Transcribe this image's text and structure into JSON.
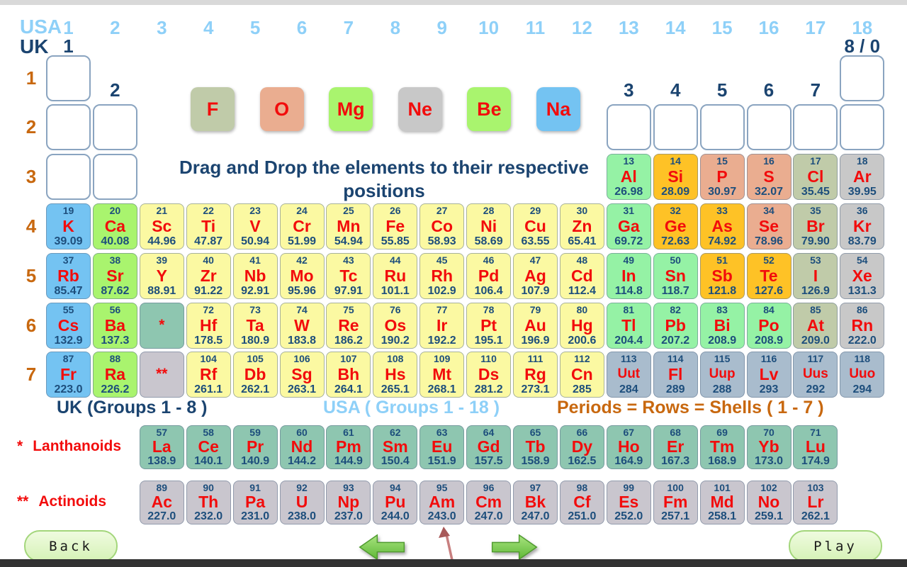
{
  "header": {
    "usa_label": "USA",
    "uk_label": "UK",
    "usa_groups": [
      "1",
      "2",
      "3",
      "4",
      "5",
      "6",
      "7",
      "8",
      "9",
      "10",
      "11",
      "12",
      "13",
      "14",
      "15",
      "16",
      "17",
      "18"
    ],
    "uk_groups": [
      {
        "label": "1",
        "group": 1,
        "row": "top"
      },
      {
        "label": "8 / 0",
        "group": 18,
        "row": "top"
      },
      {
        "label": "2",
        "group": 2,
        "row": "mid"
      },
      {
        "label": "3",
        "group": 13,
        "row": "mid"
      },
      {
        "label": "4",
        "group": 14,
        "row": "mid"
      },
      {
        "label": "5",
        "group": 15,
        "row": "mid"
      },
      {
        "label": "6",
        "group": 16,
        "row": "mid"
      },
      {
        "label": "7",
        "group": 17,
        "row": "mid"
      }
    ]
  },
  "periods": [
    "1",
    "2",
    "3",
    "4",
    "5",
    "6",
    "7"
  ],
  "instruction": "Drag and Drop the elements to their respective positions",
  "draggables": [
    {
      "symbol": "F",
      "category": "halogen"
    },
    {
      "symbol": "O",
      "category": "nonmetal"
    },
    {
      "symbol": "Mg",
      "category": "alkaline"
    },
    {
      "symbol": "Ne",
      "category": "noble"
    },
    {
      "symbol": "Be",
      "category": "alkaline"
    },
    {
      "symbol": "Na",
      "category": "alkali"
    }
  ],
  "table": {
    "empty_slots": [
      {
        "period": 1,
        "group": 1
      },
      {
        "period": 1,
        "group": 18
      },
      {
        "period": 2,
        "group": 1
      },
      {
        "period": 2,
        "group": 2
      },
      {
        "period": 2,
        "group": 13
      },
      {
        "period": 2,
        "group": 14
      },
      {
        "period": 2,
        "group": 15
      },
      {
        "period": 2,
        "group": 16
      },
      {
        "period": 2,
        "group": 17
      },
      {
        "period": 2,
        "group": 18
      },
      {
        "period": 3,
        "group": 1
      },
      {
        "period": 3,
        "group": 2
      }
    ],
    "placeholders": [
      {
        "period": 6,
        "group": 3,
        "symbol": "*",
        "category": "lanthanoid"
      },
      {
        "period": 7,
        "group": 3,
        "symbol": "**",
        "category": "actinoid"
      }
    ],
    "elements": [
      {
        "period": 3,
        "group": 13,
        "number": "13",
        "symbol": "Al",
        "mass": "26.98",
        "category": "post"
      },
      {
        "period": 3,
        "group": 14,
        "number": "14",
        "symbol": "Si",
        "mass": "28.09",
        "category": "metalloid"
      },
      {
        "period": 3,
        "group": 15,
        "number": "15",
        "symbol": "P",
        "mass": "30.97",
        "category": "nonmetal"
      },
      {
        "period": 3,
        "group": 16,
        "number": "16",
        "symbol": "S",
        "mass": "32.07",
        "category": "nonmetal"
      },
      {
        "period": 3,
        "group": 17,
        "number": "17",
        "symbol": "Cl",
        "mass": "35.45",
        "category": "halogen"
      },
      {
        "period": 3,
        "group": 18,
        "number": "18",
        "symbol": "Ar",
        "mass": "39.95",
        "category": "noble"
      },
      {
        "period": 4,
        "group": 1,
        "number": "19",
        "symbol": "K",
        "mass": "39.09",
        "category": "alkali"
      },
      {
        "period": 4,
        "group": 2,
        "number": "20",
        "symbol": "Ca",
        "mass": "40.08",
        "category": "alkaline"
      },
      {
        "period": 4,
        "group": 3,
        "number": "21",
        "symbol": "Sc",
        "mass": "44.96",
        "category": "transition"
      },
      {
        "period": 4,
        "group": 4,
        "number": "22",
        "symbol": "Ti",
        "mass": "47.87",
        "category": "transition"
      },
      {
        "period": 4,
        "group": 5,
        "number": "23",
        "symbol": "V",
        "mass": "50.94",
        "category": "transition"
      },
      {
        "period": 4,
        "group": 6,
        "number": "24",
        "symbol": "Cr",
        "mass": "51.99",
        "category": "transition"
      },
      {
        "period": 4,
        "group": 7,
        "number": "25",
        "symbol": "Mn",
        "mass": "54.94",
        "category": "transition"
      },
      {
        "period": 4,
        "group": 8,
        "number": "26",
        "symbol": "Fe",
        "mass": "55.85",
        "category": "transition"
      },
      {
        "period": 4,
        "group": 9,
        "number": "27",
        "symbol": "Co",
        "mass": "58.93",
        "category": "transition"
      },
      {
        "period": 4,
        "group": 10,
        "number": "28",
        "symbol": "Ni",
        "mass": "58.69",
        "category": "transition"
      },
      {
        "period": 4,
        "group": 11,
        "number": "29",
        "symbol": "Cu",
        "mass": "63.55",
        "category": "transition"
      },
      {
        "period": 4,
        "group": 12,
        "number": "30",
        "symbol": "Zn",
        "mass": "65.41",
        "category": "transition"
      },
      {
        "period": 4,
        "group": 13,
        "number": "31",
        "symbol": "Ga",
        "mass": "69.72",
        "category": "post"
      },
      {
        "period": 4,
        "group": 14,
        "number": "32",
        "symbol": "Ge",
        "mass": "72.63",
        "category": "metalloid"
      },
      {
        "period": 4,
        "group": 15,
        "number": "33",
        "symbol": "As",
        "mass": "74.92",
        "category": "metalloid"
      },
      {
        "period": 4,
        "group": 16,
        "number": "34",
        "symbol": "Se",
        "mass": "78.96",
        "category": "nonmetal"
      },
      {
        "period": 4,
        "group": 17,
        "number": "35",
        "symbol": "Br",
        "mass": "79.90",
        "category": "halogen"
      },
      {
        "period": 4,
        "group": 18,
        "number": "36",
        "symbol": "Kr",
        "mass": "83.79",
        "category": "noble"
      },
      {
        "period": 5,
        "group": 1,
        "number": "37",
        "symbol": "Rb",
        "mass": "85.47",
        "category": "alkali"
      },
      {
        "period": 5,
        "group": 2,
        "number": "38",
        "symbol": "Sr",
        "mass": "87.62",
        "category": "alkaline"
      },
      {
        "period": 5,
        "group": 3,
        "number": "39",
        "symbol": "Y",
        "mass": "88.91",
        "category": "transition"
      },
      {
        "period": 5,
        "group": 4,
        "number": "40",
        "symbol": "Zr",
        "mass": "91.22",
        "category": "transition"
      },
      {
        "period": 5,
        "group": 5,
        "number": "41",
        "symbol": "Nb",
        "mass": "92.91",
        "category": "transition"
      },
      {
        "period": 5,
        "group": 6,
        "number": "42",
        "symbol": "Mo",
        "mass": "95.96",
        "category": "transition"
      },
      {
        "period": 5,
        "group": 7,
        "number": "43",
        "symbol": "Tc",
        "mass": "97.91",
        "category": "transition"
      },
      {
        "period": 5,
        "group": 8,
        "number": "44",
        "symbol": "Ru",
        "mass": "101.1",
        "category": "transition"
      },
      {
        "period": 5,
        "group": 9,
        "number": "45",
        "symbol": "Rh",
        "mass": "102.9",
        "category": "transition"
      },
      {
        "period": 5,
        "group": 10,
        "number": "46",
        "symbol": "Pd",
        "mass": "106.4",
        "category": "transition"
      },
      {
        "period": 5,
        "group": 11,
        "number": "47",
        "symbol": "Ag",
        "mass": "107.9",
        "category": "transition"
      },
      {
        "period": 5,
        "group": 12,
        "number": "48",
        "symbol": "Cd",
        "mass": "112.4",
        "category": "transition"
      },
      {
        "period": 5,
        "group": 13,
        "number": "49",
        "symbol": "In",
        "mass": "114.8",
        "category": "post"
      },
      {
        "period": 5,
        "group": 14,
        "number": "50",
        "symbol": "Sn",
        "mass": "118.7",
        "category": "post"
      },
      {
        "period": 5,
        "group": 15,
        "number": "51",
        "symbol": "Sb",
        "mass": "121.8",
        "category": "metalloid"
      },
      {
        "period": 5,
        "group": 16,
        "number": "52",
        "symbol": "Te",
        "mass": "127.6",
        "category": "metalloid"
      },
      {
        "period": 5,
        "group": 17,
        "number": "53",
        "symbol": "I",
        "mass": "126.9",
        "category": "halogen"
      },
      {
        "period": 5,
        "group": 18,
        "number": "54",
        "symbol": "Xe",
        "mass": "131.3",
        "category": "noble"
      },
      {
        "period": 6,
        "group": 1,
        "number": "55",
        "symbol": "Cs",
        "mass": "132.9",
        "category": "alkali"
      },
      {
        "period": 6,
        "group": 2,
        "number": "56",
        "symbol": "Ba",
        "mass": "137.3",
        "category": "alkaline"
      },
      {
        "period": 6,
        "group": 4,
        "number": "72",
        "symbol": "Hf",
        "mass": "178.5",
        "category": "transition"
      },
      {
        "period": 6,
        "group": 5,
        "number": "73",
        "symbol": "Ta",
        "mass": "180.9",
        "category": "transition"
      },
      {
        "period": 6,
        "group": 6,
        "number": "74",
        "symbol": "W",
        "mass": "183.8",
        "category": "transition"
      },
      {
        "period": 6,
        "group": 7,
        "number": "75",
        "symbol": "Re",
        "mass": "186.2",
        "category": "transition"
      },
      {
        "period": 6,
        "group": 8,
        "number": "76",
        "symbol": "Os",
        "mass": "190.2",
        "category": "transition"
      },
      {
        "period": 6,
        "group": 9,
        "number": "77",
        "symbol": "Ir",
        "mass": "192.2",
        "category": "transition"
      },
      {
        "period": 6,
        "group": 10,
        "number": "78",
        "symbol": "Pt",
        "mass": "195.1",
        "category": "transition"
      },
      {
        "period": 6,
        "group": 11,
        "number": "79",
        "symbol": "Au",
        "mass": "196.9",
        "category": "transition"
      },
      {
        "period": 6,
        "group": 12,
        "number": "80",
        "symbol": "Hg",
        "mass": "200.6",
        "category": "transition"
      },
      {
        "period": 6,
        "group": 13,
        "number": "81",
        "symbol": "Tl",
        "mass": "204.4",
        "category": "post"
      },
      {
        "period": 6,
        "group": 14,
        "number": "82",
        "symbol": "Pb",
        "mass": "207.2",
        "category": "post"
      },
      {
        "period": 6,
        "group": 15,
        "number": "83",
        "symbol": "Bi",
        "mass": "208.9",
        "category": "post"
      },
      {
        "period": 6,
        "group": 16,
        "number": "84",
        "symbol": "Po",
        "mass": "208.9",
        "category": "post"
      },
      {
        "period": 6,
        "group": 17,
        "number": "85",
        "symbol": "At",
        "mass": "209.0",
        "category": "halogen"
      },
      {
        "period": 6,
        "group": 18,
        "number": "86",
        "symbol": "Rn",
        "mass": "222.0",
        "category": "noble"
      },
      {
        "period": 7,
        "group": 1,
        "number": "87",
        "symbol": "Fr",
        "mass": "223.0",
        "category": "alkali"
      },
      {
        "period": 7,
        "group": 2,
        "number": "88",
        "symbol": "Ra",
        "mass": "226.2",
        "category": "alkaline"
      },
      {
        "period": 7,
        "group": 4,
        "number": "104",
        "symbol": "Rf",
        "mass": "261.1",
        "category": "transition"
      },
      {
        "period": 7,
        "group": 5,
        "number": "105",
        "symbol": "Db",
        "mass": "262.1",
        "category": "transition"
      },
      {
        "period": 7,
        "group": 6,
        "number": "106",
        "symbol": "Sg",
        "mass": "263.1",
        "category": "transition"
      },
      {
        "period": 7,
        "group": 7,
        "number": "107",
        "symbol": "Bh",
        "mass": "264.1",
        "category": "transition"
      },
      {
        "period": 7,
        "group": 8,
        "number": "108",
        "symbol": "Hs",
        "mass": "265.1",
        "category": "transition"
      },
      {
        "period": 7,
        "group": 9,
        "number": "109",
        "symbol": "Mt",
        "mass": "268.1",
        "category": "transition"
      },
      {
        "period": 7,
        "group": 10,
        "number": "110",
        "symbol": "Ds",
        "mass": "281.2",
        "category": "transition"
      },
      {
        "period": 7,
        "group": 11,
        "number": "111",
        "symbol": "Rg",
        "mass": "273.1",
        "category": "transition"
      },
      {
        "period": 7,
        "group": 12,
        "number": "112",
        "symbol": "Cn",
        "mass": "285",
        "category": "transition"
      },
      {
        "period": 7,
        "group": 13,
        "number": "113",
        "symbol": "Uut",
        "mass": "284",
        "category": "superheavy"
      },
      {
        "period": 7,
        "group": 14,
        "number": "114",
        "symbol": "Fl",
        "mass": "289",
        "category": "superheavy"
      },
      {
        "period": 7,
        "group": 15,
        "number": "115",
        "symbol": "Uup",
        "mass": "288",
        "category": "superheavy"
      },
      {
        "period": 7,
        "group": 16,
        "number": "116",
        "symbol": "Lv",
        "mass": "293",
        "category": "superheavy"
      },
      {
        "period": 7,
        "group": 17,
        "number": "117",
        "symbol": "Uus",
        "mass": "292",
        "category": "superheavy"
      },
      {
        "period": 7,
        "group": 18,
        "number": "118",
        "symbol": "Uuo",
        "mass": "294",
        "category": "superheavy"
      }
    ]
  },
  "lanthanoids": {
    "marker": "*",
    "label": "Lanthanoids",
    "elements": [
      {
        "number": "57",
        "symbol": "La",
        "mass": "138.9"
      },
      {
        "number": "58",
        "symbol": "Ce",
        "mass": "140.1"
      },
      {
        "number": "59",
        "symbol": "Pr",
        "mass": "140.9"
      },
      {
        "number": "60",
        "symbol": "Nd",
        "mass": "144.2"
      },
      {
        "number": "61",
        "symbol": "Pm",
        "mass": "144.9"
      },
      {
        "number": "62",
        "symbol": "Sm",
        "mass": "150.4"
      },
      {
        "number": "63",
        "symbol": "Eu",
        "mass": "151.9"
      },
      {
        "number": "64",
        "symbol": "Gd",
        "mass": "157.5"
      },
      {
        "number": "65",
        "symbol": "Tb",
        "mass": "158.9"
      },
      {
        "number": "66",
        "symbol": "Dy",
        "mass": "162.5"
      },
      {
        "number": "67",
        "symbol": "Ho",
        "mass": "164.9"
      },
      {
        "number": "68",
        "symbol": "Er",
        "mass": "167.3"
      },
      {
        "number": "69",
        "symbol": "Tm",
        "mass": "168.9"
      },
      {
        "number": "70",
        "symbol": "Yb",
        "mass": "173.0"
      },
      {
        "number": "71",
        "symbol": "Lu",
        "mass": "174.9"
      }
    ]
  },
  "actinoids": {
    "marker": "**",
    "label": "Actinoids",
    "elements": [
      {
        "number": "89",
        "symbol": "Ac",
        "mass": "227.0"
      },
      {
        "number": "90",
        "symbol": "Th",
        "mass": "232.0"
      },
      {
        "number": "91",
        "symbol": "Pa",
        "mass": "231.0"
      },
      {
        "number": "92",
        "symbol": "U",
        "mass": "238.0"
      },
      {
        "number": "93",
        "symbol": "Np",
        "mass": "237.0"
      },
      {
        "number": "94",
        "symbol": "Pu",
        "mass": "244.0"
      },
      {
        "number": "95",
        "symbol": "Am",
        "mass": "243.0"
      },
      {
        "number": "96",
        "symbol": "Cm",
        "mass": "247.0"
      },
      {
        "number": "97",
        "symbol": "Bk",
        "mass": "247.0"
      },
      {
        "number": "98",
        "symbol": "Cf",
        "mass": "251.0"
      },
      {
        "number": "99",
        "symbol": "Es",
        "mass": "252.0"
      },
      {
        "number": "100",
        "symbol": "Fm",
        "mass": "257.1"
      },
      {
        "number": "101",
        "symbol": "Md",
        "mass": "258.1"
      },
      {
        "number": "102",
        "symbol": "No",
        "mass": "259.1"
      },
      {
        "number": "103",
        "symbol": "Lr",
        "mass": "262.1"
      }
    ]
  },
  "legend": {
    "uk": "UK (Groups 1 - 8 )",
    "usa": "USA ( Groups 1 - 18 )",
    "periods": "Periods = Rows = Shells ( 1 - 7 )"
  },
  "footer": {
    "back": "Back",
    "play": "Play"
  },
  "colors": {
    "categories": {
      "alkali": "#74c3f2",
      "alkaline": "#a9f46e",
      "transition": "#fbf9a2",
      "post": "#95f2a5",
      "metalloid": "#fec226",
      "nonmetal": "#eaad90",
      "halogen": "#c0cba9",
      "noble": "#c8c8c8",
      "superheavy": "#a9bccd",
      "lanthanoid": "#8ec6b0",
      "actinoid": "#c9c6ce"
    },
    "text": {
      "usa": "#8ed0f8",
      "uk": "#1b4470",
      "period": "#c8680f",
      "number": "#1d4e7c",
      "symbol": "#f20c0c",
      "series": "#f20c0c"
    }
  }
}
